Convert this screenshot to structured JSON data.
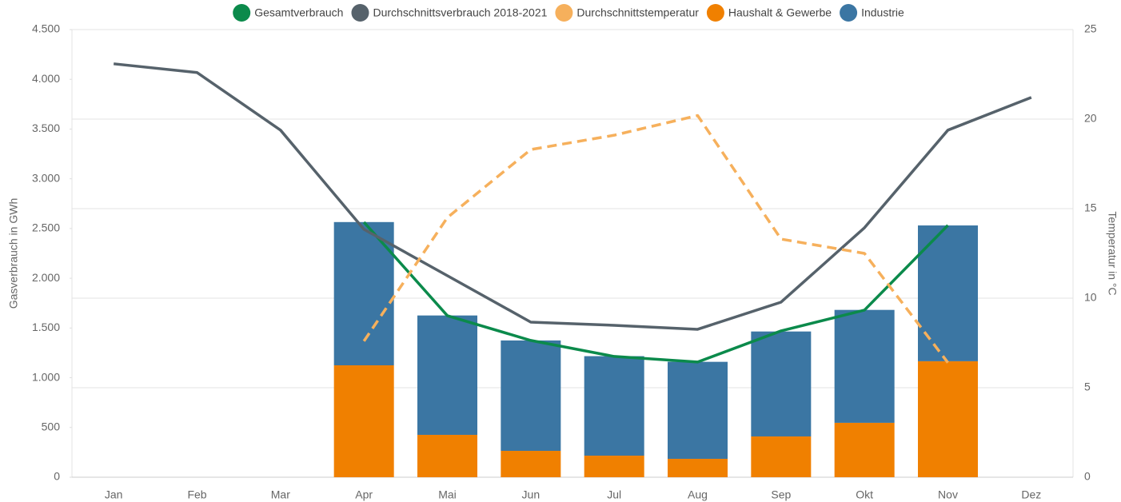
{
  "chart_data": {
    "type": "bar",
    "categories": [
      "Jan",
      "Feb",
      "Mar",
      "Apr",
      "Mai",
      "Jun",
      "Jul",
      "Aug",
      "Sep",
      "Okt",
      "Nov",
      "Dez"
    ],
    "ylabel": "Gasverbrauch in GWh",
    "y2label": "Temperatur in °C",
    "ylim": [
      0,
      4500
    ],
    "yticks": [
      0,
      {
        "value": 500,
        "label": "500"
      },
      {
        "value": 1000,
        "label": "1.000"
      },
      {
        "value": 1500,
        "label": "1.500"
      },
      {
        "value": 2000,
        "label": "2.000"
      },
      {
        "value": 2500,
        "label": "2.500"
      },
      {
        "value": 3000,
        "label": "3.000"
      },
      {
        "value": 3500,
        "label": "3.500"
      },
      {
        "value": 4000,
        "label": "4.000"
      },
      {
        "value": 4500,
        "label": "4.500"
      }
    ],
    "y2lim": [
      0,
      25
    ],
    "y2ticks": [
      0,
      5,
      10,
      15,
      20,
      25
    ],
    "grid": "y2",
    "legend": "top",
    "series": [
      {
        "name": "Gesamtverbrauch",
        "type": "line",
        "color": "#0b8a4b",
        "values": [
          null,
          null,
          null,
          2564,
          1624,
          1375,
          1214,
          1158,
          1471,
          1680,
          2532,
          null
        ]
      },
      {
        "name": "Durchschnittsverbrauch 2018-2021",
        "type": "line",
        "color": "#56626b",
        "values": [
          4156,
          4068,
          3489,
          2492,
          2026,
          1559,
          1527,
          1487,
          1760,
          2508,
          3489,
          3818
        ]
      },
      {
        "name": "Durchschnittstemperatur",
        "type": "line",
        "dashed": true,
        "axis": "y2",
        "color": "#f6b05c",
        "values": [
          null,
          null,
          null,
          7.6,
          14.5,
          18.3,
          19.1,
          20.2,
          13.3,
          12.5,
          6.4,
          null
        ]
      },
      {
        "name": "Haushalt & Gewerbe",
        "type": "bar",
        "color": "#f08000",
        "values": [
          null,
          null,
          null,
          1125,
          426,
          265,
          217,
          185,
          410,
          547,
          1166,
          null
        ]
      },
      {
        "name": "Industrie",
        "type": "bar",
        "color": "#3b76a3",
        "values": [
          null,
          null,
          null,
          1440,
          1200,
          1110,
          1000,
          975,
          1055,
          1135,
          1365,
          null
        ]
      }
    ]
  }
}
